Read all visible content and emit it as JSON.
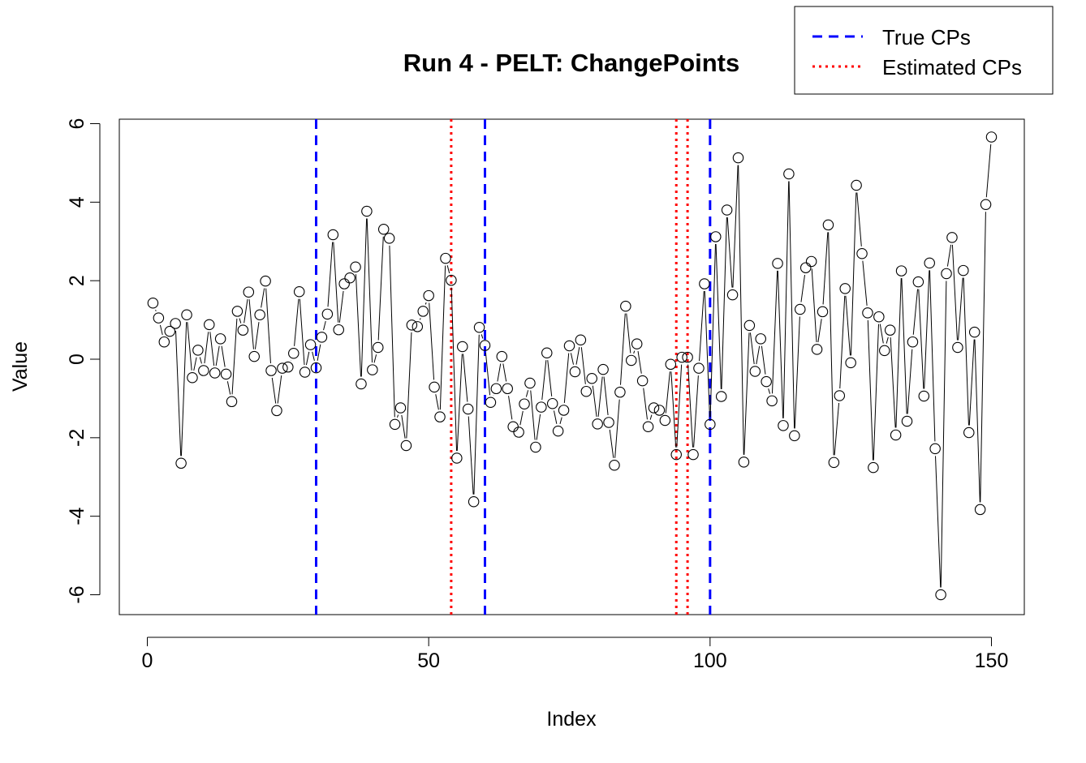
{
  "chart_data": {
    "type": "scatter",
    "title": "Run 4 - PELT: ChangePoints",
    "xlabel": "Index",
    "ylabel": "Value",
    "xlim": [
      0,
      150
    ],
    "ylim": [
      -6,
      6
    ],
    "x_ticks": [
      0,
      50,
      100,
      150
    ],
    "y_ticks": [
      -6,
      -4,
      -2,
      0,
      2,
      4,
      6
    ],
    "grid": false,
    "legend_position": "top-right",
    "legend": [
      {
        "label": "True CPs",
        "color": "#0000ff",
        "style": "dashed"
      },
      {
        "label": "Estimated CPs",
        "color": "#ff0000",
        "style": "dotted"
      }
    ],
    "true_cps": [
      30,
      60,
      100
    ],
    "estimated_cps": [
      54,
      94,
      96
    ],
    "series": [
      {
        "style": "points-connected-by-line",
        "point_color": "#000000",
        "values": [
          1.43,
          1.05,
          0.44,
          0.71,
          0.91,
          -2.65,
          1.13,
          -0.47,
          0.23,
          -0.29,
          0.88,
          -0.35,
          0.52,
          -0.38,
          -1.08,
          1.22,
          0.74,
          1.71,
          0.07,
          1.13,
          1.99,
          -0.29,
          -1.31,
          -0.23,
          -0.2,
          0.15,
          1.72,
          -0.33,
          0.37,
          -0.22,
          0.56,
          1.15,
          3.17,
          0.75,
          1.92,
          2.07,
          2.35,
          -0.63,
          3.77,
          -0.27,
          0.3,
          3.31,
          3.08,
          -1.66,
          -1.24,
          -2.2,
          0.87,
          0.83,
          1.22,
          1.62,
          -0.71,
          -1.47,
          2.57,
          2.01,
          -2.52,
          0.32,
          -1.27,
          -3.63,
          0.81,
          0.35,
          -1.1,
          -0.75,
          0.07,
          -0.75,
          -1.72,
          -1.86,
          -1.14,
          -0.61,
          -2.24,
          -1.22,
          0.16,
          -1.13,
          -1.83,
          -1.3,
          0.34,
          -0.32,
          0.49,
          -0.82,
          -0.49,
          -1.65,
          -0.26,
          -1.61,
          -2.7,
          -0.84,
          1.35,
          -0.03,
          0.39,
          -0.55,
          -1.72,
          -1.24,
          -1.3,
          -1.56,
          -0.13,
          -2.43,
          0.05,
          0.05,
          -2.43,
          -0.23,
          1.92,
          -1.66,
          3.12,
          -0.95,
          3.8,
          1.64,
          5.13,
          -2.62,
          0.86,
          -0.31,
          0.52,
          -0.57,
          -1.06,
          2.44,
          -1.69,
          4.72,
          -1.95,
          1.27,
          2.33,
          2.49,
          0.25,
          1.21,
          3.42,
          -2.63,
          -0.93,
          1.8,
          -0.09,
          4.43,
          2.69,
          1.18,
          -2.76,
          1.08,
          0.22,
          0.74,
          -1.93,
          2.25,
          -1.58,
          0.44,
          1.97,
          -0.94,
          2.45,
          -2.28,
          -6.0,
          2.18,
          3.1,
          0.3,
          2.26,
          -1.87,
          0.69,
          -3.83,
          3.94,
          5.66
        ]
      }
    ]
  }
}
